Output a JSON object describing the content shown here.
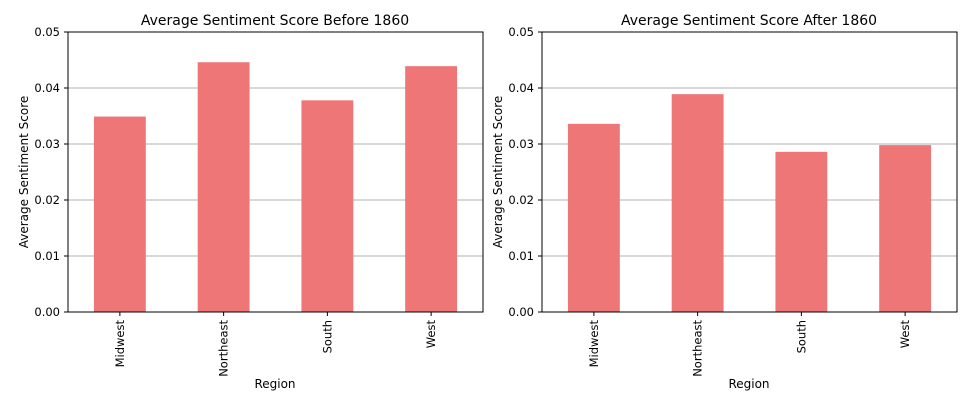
{
  "colors": {
    "bar": "#ee7676",
    "grid": "#b0b0b0",
    "axis": "#000000"
  },
  "chart_data": [
    {
      "type": "bar",
      "title": "Average Sentiment Score Before 1860",
      "xlabel": "Region",
      "ylabel": "Average Sentiment Score",
      "categories": [
        "Midwest",
        "Northeast",
        "South",
        "West"
      ],
      "values": [
        0.0349,
        0.0446,
        0.0378,
        0.0439
      ],
      "ylim": [
        0,
        0.05
      ],
      "yticks": [
        "0.00",
        "0.01",
        "0.02",
        "0.03",
        "0.04",
        "0.05"
      ],
      "grid": "horizontal"
    },
    {
      "type": "bar",
      "title": "Average Sentiment Score After 1860",
      "xlabel": "Region",
      "ylabel": "Average Sentiment Score",
      "categories": [
        "Midwest",
        "Northeast",
        "South",
        "West"
      ],
      "values": [
        0.0336,
        0.0389,
        0.0286,
        0.0298
      ],
      "ylim": [
        0,
        0.05
      ],
      "yticks": [
        "0.00",
        "0.01",
        "0.02",
        "0.03",
        "0.04",
        "0.05"
      ],
      "grid": "horizontal"
    }
  ]
}
